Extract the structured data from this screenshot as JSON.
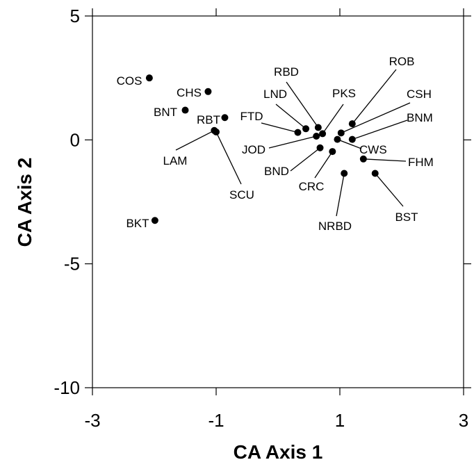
{
  "chart_data": {
    "type": "scatter",
    "title": "",
    "xlabel": "CA Axis 1",
    "ylabel": "CA Axis 2",
    "xlim": [
      -3,
      3
    ],
    "ylim": [
      -10,
      5
    ],
    "xticks": [
      {
        "value": -3,
        "label": "-3"
      },
      {
        "value": -1,
        "label": "-1"
      },
      {
        "value": 1,
        "label": "1"
      },
      {
        "value": 3,
        "label": "3"
      }
    ],
    "yticks": [
      {
        "value": 5,
        "label": "5"
      },
      {
        "value": 0,
        "label": "0"
      },
      {
        "value": -5,
        "label": "-5"
      },
      {
        "value": -10,
        "label": "-10"
      }
    ],
    "grid": false,
    "legend": "none",
    "marker_color": "#000000",
    "points": [
      {
        "label": "COS",
        "x": -2.08,
        "y": 2.5
      },
      {
        "label": "CHS",
        "x": -1.13,
        "y": 1.95
      },
      {
        "label": "BNT",
        "x": -1.5,
        "y": 1.2
      },
      {
        "label": "RBT",
        "x": -0.86,
        "y": 0.9
      },
      {
        "label": "LAM",
        "x": -1.03,
        "y": 0.38
      },
      {
        "label": "SCU",
        "x": -1.0,
        "y": 0.32
      },
      {
        "label": "BKT",
        "x": -1.99,
        "y": -3.25
      },
      {
        "label": "FTD",
        "x": 0.32,
        "y": 0.3
      },
      {
        "label": "LND",
        "x": 0.45,
        "y": 0.45
      },
      {
        "label": "RBD",
        "x": 0.65,
        "y": 0.5
      },
      {
        "label": "JOD",
        "x": 0.62,
        "y": 0.15
      },
      {
        "label": "PKS",
        "x": 0.72,
        "y": 0.25
      },
      {
        "label": "BND",
        "x": 0.68,
        "y": -0.32
      },
      {
        "label": "CRC",
        "x": 0.88,
        "y": -0.47
      },
      {
        "label": "ROB",
        "x": 1.2,
        "y": 0.65
      },
      {
        "label": "CSH",
        "x": 1.02,
        "y": 0.28
      },
      {
        "label": "BNM",
        "x": 1.2,
        "y": 0.02
      },
      {
        "label": "CWS",
        "x": 0.96,
        "y": 0.02
      },
      {
        "label": "FHM",
        "x": 1.38,
        "y": -0.77
      },
      {
        "label": "BST",
        "x": 1.57,
        "y": -1.35
      },
      {
        "label": "NRBD",
        "x": 1.07,
        "y": -1.35
      }
    ]
  }
}
